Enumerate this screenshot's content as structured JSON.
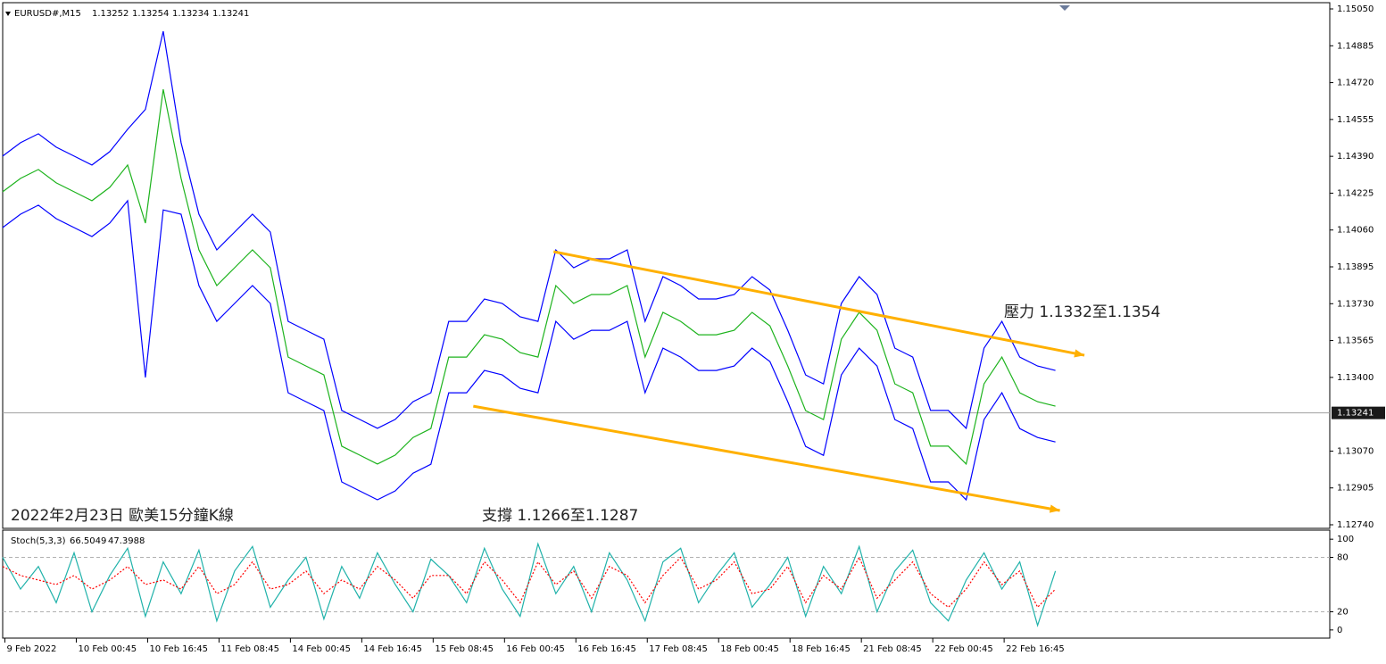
{
  "chart_data": [
    {
      "type": "line",
      "symbol": "EURUSD#,M15",
      "ohlc": [
        1.13252,
        1.13254,
        1.13234,
        1.13241
      ],
      "annotations": [
        "壓力 1.1332至1.1354",
        "支撐 1.1266至1.1287",
        "2022年2月23日 歐美15分鐘K線"
      ],
      "xlim": [
        0,
        1190
      ],
      "ylim": [
        1.12724,
        1.15078
      ],
      "yticks": [
        {
          "value": 1.1505,
          "label": "1.15050"
        },
        1.14885,
        {
          "value": 1.1472,
          "label": "1.14720"
        },
        1.14555,
        {
          "value": 1.1439,
          "label": "1.14390"
        },
        1.14225,
        {
          "value": 1.1406,
          "label": "1.14060"
        },
        1.13895,
        {
          "value": 1.1373,
          "label": "1.13730"
        },
        1.13565,
        {
          "value": 1.134,
          "label": "1.13400"
        },
        {
          "value": 1.1307,
          "label": "1.13070"
        },
        1.12905,
        {
          "value": 1.1274,
          "label": "1.12740"
        }
      ],
      "x": [
        0,
        16,
        32,
        48,
        64,
        80,
        96,
        112,
        128,
        144,
        160,
        176,
        192,
        208,
        224,
        240,
        256,
        272,
        288,
        304,
        320,
        336,
        352,
        368,
        384,
        400,
        416,
        432,
        448,
        464,
        480,
        496,
        512,
        528,
        544,
        560,
        576,
        592,
        608,
        624,
        640,
        656,
        672,
        688,
        704,
        720,
        736,
        752,
        768,
        784,
        800,
        816,
        832,
        848,
        864,
        880,
        896,
        912,
        928,
        944
      ],
      "series": [
        {
          "color": "#0000ff",
          "values": [
            1.14391,
            1.14451,
            1.14491,
            1.14431,
            1.14391,
            1.14351,
            1.14411,
            1.14511,
            1.146,
            1.1495,
            1.14451,
            1.14131,
            1.13971,
            1.14051,
            1.14131,
            1.14051,
            1.13651,
            1.13611,
            1.13571,
            1.13252,
            1.13212,
            1.13172,
            1.13212,
            1.13291,
            1.13331,
            1.13651,
            1.13651,
            1.13751,
            1.13731,
            1.13671,
            1.13651,
            1.13971,
            1.13891,
            1.13931,
            1.13931,
            1.13971,
            1.13651,
            1.13851,
            1.13811,
            1.13751,
            1.13751,
            1.13771,
            1.13851,
            1.13791,
            1.13611,
            1.13411,
            1.13371,
            1.13731,
            1.13851,
            1.13771,
            1.13531,
            1.13491,
            1.13252,
            1.13252,
            1.13172,
            1.13531,
            1.13651,
            1.13491,
            1.13451,
            1.13431
          ]
        },
        {
          "color": "#0000ff",
          "values": [
            1.14071,
            1.14131,
            1.14171,
            1.14111,
            1.14071,
            1.14031,
            1.14091,
            1.14191,
            1.134,
            1.1415,
            1.14131,
            1.13811,
            1.13651,
            1.13731,
            1.13811,
            1.13731,
            1.13331,
            1.13291,
            1.13251,
            1.12932,
            1.12892,
            1.12852,
            1.12892,
            1.12971,
            1.13011,
            1.13331,
            1.13331,
            1.13431,
            1.13411,
            1.13351,
            1.13331,
            1.13651,
            1.13571,
            1.13611,
            1.13611,
            1.13651,
            1.13331,
            1.13531,
            1.13491,
            1.13431,
            1.13431,
            1.13451,
            1.13531,
            1.13471,
            1.13291,
            1.13091,
            1.13051,
            1.13411,
            1.13531,
            1.13451,
            1.13211,
            1.13171,
            1.12932,
            1.12932,
            1.12852,
            1.13211,
            1.13331,
            1.13171,
            1.13131,
            1.13111
          ]
        },
        {
          "color": "#1db31d",
          "values": [
            1.14231,
            1.14291,
            1.14331,
            1.14271,
            1.14231,
            1.14191,
            1.14251,
            1.14351,
            1.14091,
            1.1469,
            1.14291,
            1.13971,
            1.13811,
            1.13891,
            1.13971,
            1.13891,
            1.13491,
            1.13451,
            1.13411,
            1.13092,
            1.13052,
            1.13012,
            1.13052,
            1.13131,
            1.13171,
            1.13491,
            1.13491,
            1.13591,
            1.13571,
            1.13511,
            1.13491,
            1.13811,
            1.13731,
            1.13771,
            1.13771,
            1.13811,
            1.13491,
            1.13691,
            1.13651,
            1.13591,
            1.13591,
            1.13611,
            1.13691,
            1.13631,
            1.13451,
            1.13251,
            1.13211,
            1.13571,
            1.13691,
            1.13611,
            1.13371,
            1.13331,
            1.13092,
            1.13092,
            1.13012,
            1.13371,
            1.13491,
            1.13331,
            1.13291,
            1.13271
          ]
        }
      ],
      "trendlines": [
        {
          "color": "#ffb000",
          "x": [
            494,
            970
          ],
          "y": [
            1.13963,
            1.13499
          ]
        },
        {
          "color": "#ffb000",
          "x": [
            422,
            948
          ],
          "y": [
            1.13271,
            1.12804
          ]
        }
      ]
    },
    {
      "type": "line",
      "indicator": "Stoch(5,3,3)",
      "indicator_values": [
        66.5049,
        47.3988
      ],
      "xlim": [
        0,
        1190
      ],
      "ylim": [
        -9,
        110
      ],
      "yticks": [
        0,
        20,
        80,
        100
      ],
      "levels": [
        20,
        80
      ],
      "xticks": [
        {
          "value": 2,
          "label": "9 Feb 2022"
        },
        {
          "value": 66,
          "label": "10 Feb 00:45"
        },
        {
          "value": 130,
          "label": "10 Feb 16:45"
        },
        {
          "value": 194,
          "label": "11 Feb 08:45"
        },
        {
          "value": 258,
          "label": "14 Feb 00:45"
        },
        {
          "value": 322,
          "label": "14 Feb 16:45"
        },
        {
          "value": 386,
          "label": "15 Feb 08:45"
        },
        {
          "value": 450,
          "label": "16 Feb 00:45"
        },
        {
          "value": 514,
          "label": "16 Feb 16:45"
        },
        {
          "value": 578,
          "label": "17 Feb 08:45"
        },
        {
          "value": 642,
          "label": "18 Feb 00:45"
        },
        {
          "value": 706,
          "label": "18 Feb 16:45"
        },
        {
          "value": 770,
          "label": "21 Feb 08:45"
        },
        {
          "value": 834,
          "label": "22 Feb 00:45"
        },
        {
          "value": 898,
          "label": "22 Feb 16:45"
        }
      ],
      "x": [
        0,
        16,
        32,
        48,
        64,
        80,
        96,
        112,
        128,
        144,
        160,
        176,
        192,
        208,
        224,
        240,
        256,
        272,
        288,
        304,
        320,
        336,
        352,
        368,
        384,
        400,
        416,
        432,
        448,
        464,
        480,
        496,
        512,
        528,
        544,
        560,
        576,
        592,
        608,
        624,
        640,
        656,
        672,
        688,
        704,
        720,
        736,
        752,
        768,
        784,
        800,
        816,
        832,
        848,
        864,
        880,
        896,
        912,
        928,
        944
      ],
      "series": [
        {
          "color": "#20b2aa",
          "values": [
            80,
            45,
            70,
            30,
            85,
            20,
            60,
            90,
            15,
            75,
            40,
            88,
            10,
            65,
            92,
            25,
            55,
            80,
            12,
            70,
            35,
            85,
            50,
            20,
            78,
            60,
            30,
            90,
            45,
            15,
            95,
            40,
            70,
            20,
            85,
            55,
            10,
            75,
            90,
            30,
            60,
            85,
            25,
            50,
            80,
            15,
            70,
            40,
            92,
            20,
            65,
            88,
            30,
            10,
            55,
            85,
            45,
            75,
            5,
            65
          ]
        },
        {
          "color": "#ff0000",
          "dashed": true,
          "values": [
            70,
            60,
            55,
            50,
            60,
            45,
            55,
            70,
            50,
            55,
            45,
            70,
            40,
            50,
            75,
            45,
            50,
            65,
            40,
            55,
            45,
            70,
            55,
            35,
            60,
            60,
            40,
            75,
            55,
            30,
            75,
            50,
            65,
            35,
            70,
            60,
            30,
            60,
            80,
            45,
            55,
            75,
            40,
            45,
            70,
            30,
            60,
            45,
            80,
            35,
            55,
            75,
            40,
            25,
            45,
            75,
            50,
            65,
            25,
            45
          ]
        }
      ]
    }
  ]
}
